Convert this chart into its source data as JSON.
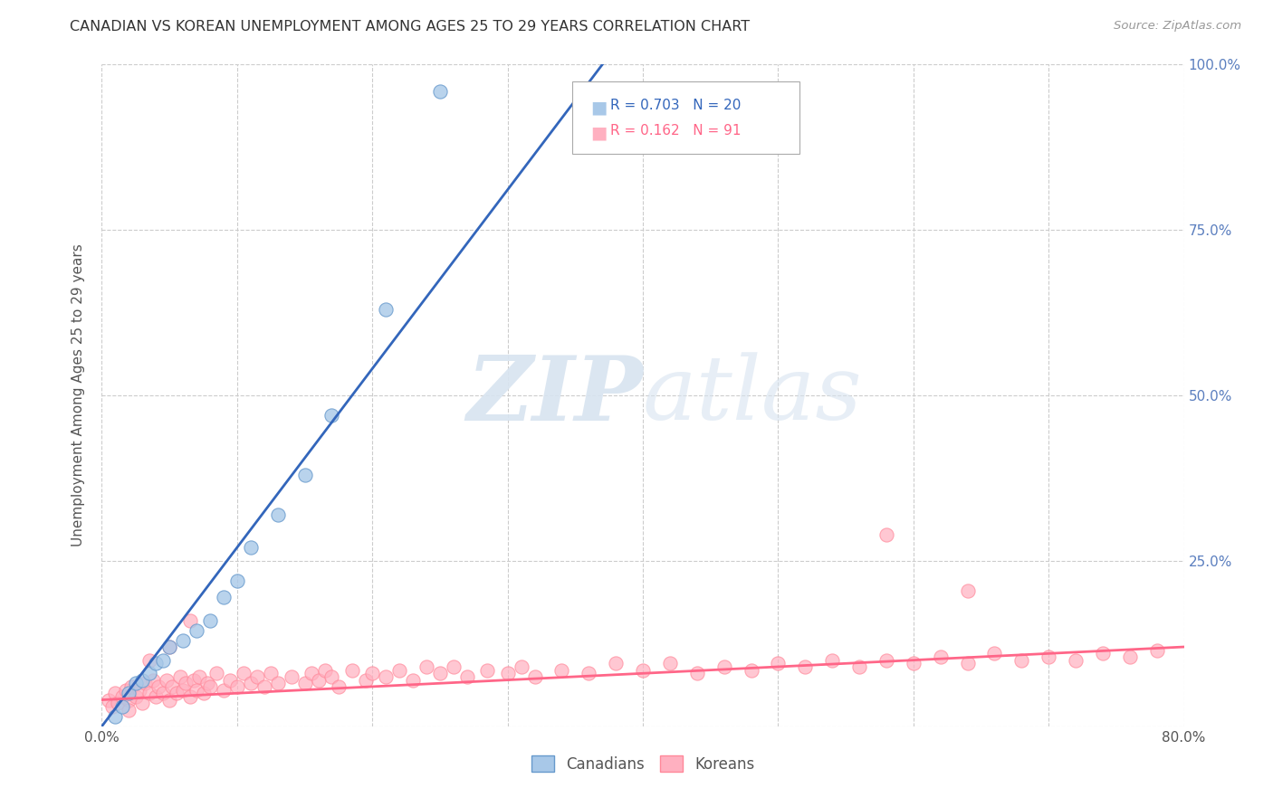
{
  "title": "CANADIAN VS KOREAN UNEMPLOYMENT AMONG AGES 25 TO 29 YEARS CORRELATION CHART",
  "source": "Source: ZipAtlas.com",
  "ylabel": "Unemployment Among Ages 25 to 29 years",
  "xlim": [
    0.0,
    0.8
  ],
  "ylim": [
    0.0,
    1.0
  ],
  "xticks": [
    0.0,
    0.1,
    0.2,
    0.3,
    0.4,
    0.5,
    0.6,
    0.7,
    0.8
  ],
  "xticklabels": [
    "0.0%",
    "",
    "",
    "",
    "",
    "",
    "",
    "",
    "80.0%"
  ],
  "yticks": [
    0.0,
    0.25,
    0.5,
    0.75,
    1.0
  ],
  "yticklabels_right": [
    "",
    "25.0%",
    "50.0%",
    "75.0%",
    "100.0%"
  ],
  "canadian_color": "#A8C8E8",
  "canadian_edge_color": "#6699CC",
  "korean_color": "#FFB0C0",
  "korean_edge_color": "#FF8899",
  "canadian_line_color": "#3366BB",
  "korean_line_color": "#FF6688",
  "canadian_R": 0.703,
  "canadian_N": 20,
  "korean_R": 0.162,
  "korean_N": 91,
  "background_color": "#FFFFFF",
  "grid_color": "#CCCCCC",
  "tick_label_color": "#5B7FBF",
  "watermark_zip": "ZIP",
  "watermark_atlas": "atlas",
  "can_x": [
    0.01,
    0.015,
    0.02,
    0.025,
    0.03,
    0.035,
    0.04,
    0.045,
    0.05,
    0.06,
    0.07,
    0.08,
    0.09,
    0.1,
    0.11,
    0.13,
    0.15,
    0.17,
    0.21,
    0.25
  ],
  "can_y": [
    0.015,
    0.03,
    0.05,
    0.065,
    0.07,
    0.08,
    0.095,
    0.1,
    0.12,
    0.13,
    0.145,
    0.16,
    0.195,
    0.22,
    0.27,
    0.32,
    0.38,
    0.47,
    0.63,
    0.96
  ],
  "kor_x": [
    0.005,
    0.008,
    0.01,
    0.012,
    0.015,
    0.018,
    0.02,
    0.022,
    0.025,
    0.028,
    0.03,
    0.032,
    0.035,
    0.038,
    0.04,
    0.042,
    0.045,
    0.048,
    0.05,
    0.052,
    0.055,
    0.058,
    0.06,
    0.062,
    0.065,
    0.068,
    0.07,
    0.072,
    0.075,
    0.078,
    0.08,
    0.085,
    0.09,
    0.095,
    0.1,
    0.105,
    0.11,
    0.115,
    0.12,
    0.125,
    0.13,
    0.14,
    0.15,
    0.155,
    0.16,
    0.165,
    0.17,
    0.175,
    0.185,
    0.195,
    0.2,
    0.21,
    0.22,
    0.23,
    0.24,
    0.25,
    0.26,
    0.27,
    0.285,
    0.3,
    0.31,
    0.32,
    0.34,
    0.36,
    0.38,
    0.4,
    0.42,
    0.44,
    0.46,
    0.48,
    0.5,
    0.52,
    0.54,
    0.56,
    0.58,
    0.6,
    0.62,
    0.64,
    0.66,
    0.68,
    0.7,
    0.72,
    0.74,
    0.76,
    0.78,
    0.02,
    0.035,
    0.05,
    0.065,
    0.58,
    0.64
  ],
  "kor_y": [
    0.04,
    0.03,
    0.05,
    0.035,
    0.045,
    0.055,
    0.04,
    0.06,
    0.045,
    0.055,
    0.035,
    0.065,
    0.05,
    0.07,
    0.045,
    0.06,
    0.05,
    0.07,
    0.04,
    0.06,
    0.05,
    0.075,
    0.055,
    0.065,
    0.045,
    0.07,
    0.055,
    0.075,
    0.05,
    0.065,
    0.06,
    0.08,
    0.055,
    0.07,
    0.06,
    0.08,
    0.065,
    0.075,
    0.06,
    0.08,
    0.065,
    0.075,
    0.065,
    0.08,
    0.07,
    0.085,
    0.075,
    0.06,
    0.085,
    0.07,
    0.08,
    0.075,
    0.085,
    0.07,
    0.09,
    0.08,
    0.09,
    0.075,
    0.085,
    0.08,
    0.09,
    0.075,
    0.085,
    0.08,
    0.095,
    0.085,
    0.095,
    0.08,
    0.09,
    0.085,
    0.095,
    0.09,
    0.1,
    0.09,
    0.1,
    0.095,
    0.105,
    0.095,
    0.11,
    0.1,
    0.105,
    0.1,
    0.11,
    0.105,
    0.115,
    0.025,
    0.1,
    0.12,
    0.16,
    0.29,
    0.205
  ],
  "can_line_x": [
    0.0,
    0.37
  ],
  "can_line_y": [
    0.0,
    1.0
  ],
  "kor_line_x": [
    0.0,
    0.8
  ],
  "kor_line_y": [
    0.04,
    0.12
  ]
}
